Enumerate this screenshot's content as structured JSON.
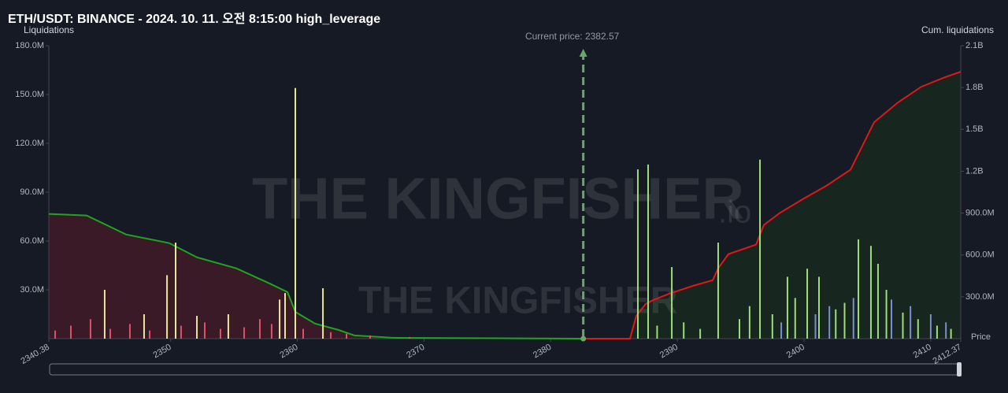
{
  "chart_data": {
    "type": "bar",
    "title": "ETH/USDT: BINANCE - 2024. 10. 11. 오전 8:15:00 high_leverage",
    "y_axis_label": "Liquidations",
    "y2_axis_label": "Cum. liquidations",
    "x_axis_label": "Price",
    "current_price": 2382.57,
    "current_price_label": "Current price: 2382.57",
    "watermark_large": "THE KINGFISHER",
    "watermark_suffix": ".io",
    "watermark_small": "THE KINGFISHER",
    "xlim": [
      2340.38,
      2412.37
    ],
    "xticks": [
      2340.38,
      2350,
      2360,
      2370,
      2380,
      2390,
      2400,
      2410,
      2412.37
    ],
    "ylim": [
      0,
      180000000
    ],
    "yticks": [
      {
        "value": 30000000,
        "label": "30.0M"
      },
      {
        "value": 60000000,
        "label": "60.0M"
      },
      {
        "value": 90000000,
        "label": "90.0M"
      },
      {
        "value": 120000000,
        "label": "120.0M"
      },
      {
        "value": 150000000,
        "label": "150.0M"
      },
      {
        "value": 180000000,
        "label": "180.0M"
      }
    ],
    "y2lim": [
      0,
      2100000000
    ],
    "y2ticks": [
      {
        "value": 300000000,
        "label": "300.0M"
      },
      {
        "value": 600000000,
        "label": "600.0M"
      },
      {
        "value": 900000000,
        "label": "900.0M"
      },
      {
        "value": 1200000000,
        "label": "1.2B"
      },
      {
        "value": 1500000000,
        "label": "1.5B"
      },
      {
        "value": 1800000000,
        "label": "1.8B"
      },
      {
        "value": 2100000000,
        "label": "2.1B"
      }
    ],
    "grid": false,
    "series": [
      {
        "type": "area",
        "axis": "y2",
        "color": "#1fa51f",
        "fill": "#3a1a26",
        "x": [
          2340.38,
          2343.36,
          2344.92,
          2346.47,
          2349.89,
          2352.07,
          2355.18,
          2357.66,
          2359.22,
          2359.84,
          2361.39,
          2363.26,
          2364.5,
          2367.61,
          2382.57
        ],
        "values": [
          894000000,
          883000000,
          815000000,
          747000000,
          685000000,
          583000000,
          504000000,
          402000000,
          334000000,
          192000000,
          108000000,
          62000000,
          23000000,
          6000000,
          0
        ]
      },
      {
        "type": "area",
        "axis": "y2",
        "color": "#e01818",
        "fill": "#17261f",
        "x": [
          2382.57,
          2386.26,
          2386.76,
          2387.5,
          2388.1,
          2389.37,
          2391.24,
          2392.79,
          2393.22,
          2394.03,
          2396.21,
          2396.83,
          2398.07,
          2399.94,
          2401.8,
          2403.67,
          2404.6,
          2405.53,
          2407.4,
          2409.26,
          2411.12,
          2412.37
        ],
        "values": [
          0,
          0,
          164000000,
          249000000,
          277000000,
          323000000,
          379000000,
          419000000,
          504000000,
          606000000,
          674000000,
          815000000,
          900000000,
          1002000000,
          1098000000,
          1211000000,
          1381000000,
          1551000000,
          1692000000,
          1806000000,
          1874000000,
          1913000000
        ]
      },
      {
        "type": "bar",
        "color": "#e0506a",
        "x": [
          2340.88,
          2342.12,
          2343.67,
          2345.23,
          2346.78,
          2348.34,
          2350.82,
          2352.69,
          2353.93,
          2355.8,
          2357.04,
          2357.97,
          2360.46,
          2362.64,
          2363.88,
          2365.74,
          2368.85
        ],
        "values": [
          5000000,
          8000000,
          12000000,
          6000000,
          9000000,
          5000000,
          8000000,
          10000000,
          6000000,
          7000000,
          12000000,
          9000000,
          6000000,
          4000000,
          3000000,
          2000000,
          1000000
        ]
      },
      {
        "type": "bar",
        "color": "#e8e89a",
        "x": [
          2344.79,
          2347.9,
          2349.71,
          2350.39,
          2352.07,
          2354.55,
          2358.6,
          2359.03,
          2359.84,
          2362.02
        ],
        "values": [
          30000000,
          15000000,
          39000000,
          59000000,
          14000000,
          15000000,
          24000000,
          28000000,
          154000000,
          31000000
        ]
      },
      {
        "type": "bar",
        "color": "#9ede7a",
        "x": [
          2386.88,
          2387.69,
          2388.4,
          2389.56,
          2390.5,
          2391.8,
          2393.22,
          2394.9,
          2395.7,
          2396.52,
          2397.5,
          2398.69,
          2399.3,
          2400.25,
          2401.18,
          2402.5,
          2403.2,
          2404.29,
          2405.28,
          2405.84,
          2406.5,
          2407.8,
          2409.0,
          2410.5,
          2411.6
        ],
        "values": [
          104000000,
          107000000,
          8000000,
          44000000,
          10000000,
          6000000,
          59000000,
          12000000,
          20000000,
          110000000,
          15000000,
          38000000,
          25000000,
          43000000,
          38000000,
          18000000,
          22000000,
          61000000,
          57000000,
          46000000,
          30000000,
          16000000,
          12000000,
          8000000,
          6000000
        ]
      },
      {
        "type": "bar",
        "color": "#7a8ed0",
        "x": [
          2398.2,
          2400.9,
          2402.0,
          2403.9,
          2406.9,
          2408.4,
          2410.0,
          2411.2
        ],
        "values": [
          10000000,
          15000000,
          20000000,
          25000000,
          24000000,
          20000000,
          15000000,
          10000000
        ]
      }
    ]
  }
}
